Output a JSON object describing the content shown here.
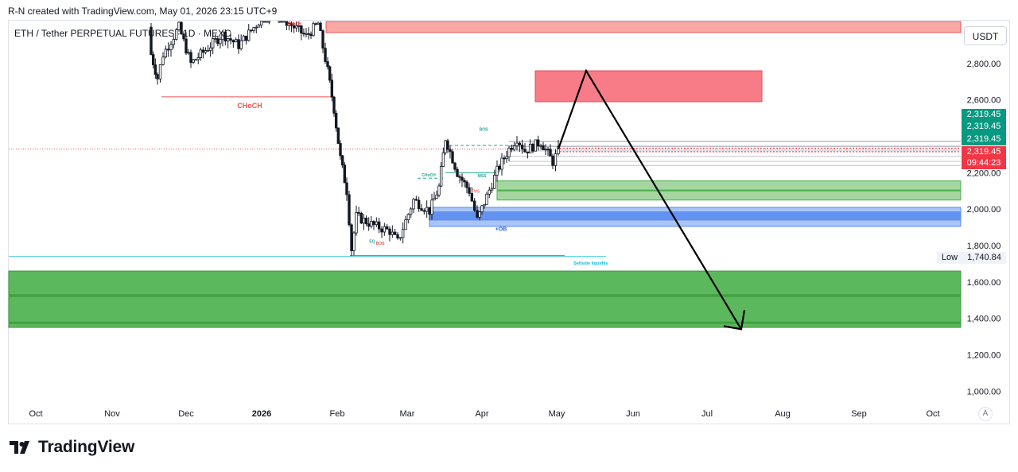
{
  "credit": "R-N created with TradingView.com, May 01, 2026 23:15 UTC+9",
  "symbol": "ETH / Tether PERPETUAL FUTURES · 1D · MEXC",
  "currency_button": "USDT",
  "auto_scale_button": "A",
  "brand": "TradingView",
  "badges": {
    "green_values": [
      "2,319.45",
      "2,319.45",
      "2,319.45"
    ],
    "red_price": "2,319.45",
    "countdown": "09:44:23",
    "low_label": "Low",
    "low_value": "1,740.84"
  },
  "colors": {
    "up": "#26a69a",
    "down": "#ef5350",
    "candle": "#131722",
    "supply_zone": "#f77c88",
    "demand_zone": "#4caf50",
    "ob_zone": "#5b8def",
    "arrow": "#000000"
  },
  "annotations": {
    "choch_top": "CHoCH",
    "choch_left": "CHoCH",
    "choch_mid": "CHoCH",
    "bos_top": "BOS",
    "bos_low": "BOS",
    "mss": "MSS",
    "eq": "EQ",
    "ob": "+OB",
    "sellside": "Sellside liquidity",
    "fvg": "FVG"
  },
  "chart_data": {
    "type": "candlestick",
    "symbol": "ETH / Tether PERPETUAL FUTURES · 1D · MEXC",
    "currency": "USDT",
    "y_ticks": [
      2800,
      2600,
      2400,
      2200,
      2000,
      1800,
      1600,
      1400,
      1200,
      1000
    ],
    "y_tick_labels": [
      "2,800.00",
      "2,600.00",
      "",
      "2,200.00",
      "2,000.00",
      "1,800.00",
      "1,600.00",
      "1,400.00",
      "1,200.00",
      "1,000.00"
    ],
    "x_labels": [
      "Oct",
      "Nov",
      "Dec",
      "2026",
      "Feb",
      "Mar",
      "Apr",
      "May",
      "Jun",
      "Jul",
      "Aug",
      "Sep",
      "Oct"
    ],
    "ylim": [
      950,
      3050
    ],
    "last_price": 2319.45,
    "low": 1740.84,
    "zones": [
      {
        "name": "supply-top",
        "type": "supply",
        "from": 3030,
        "to": 2970
      },
      {
        "name": "supply-target",
        "type": "supply",
        "from": 2760,
        "to": 2590
      },
      {
        "name": "demand-near",
        "type": "demand",
        "from": 2150,
        "to": 2050
      },
      {
        "name": "order-block",
        "type": "ob",
        "from": 2010,
        "to": 1905
      },
      {
        "name": "demand-deep",
        "type": "demand",
        "from": 1660,
        "to": 1350
      }
    ],
    "projection": [
      {
        "date": "2026-05-01",
        "price": 2330
      },
      {
        "date": "2026-05-14",
        "price": 2760
      },
      {
        "date": "2026-07-20",
        "price": 1340
      }
    ]
  }
}
